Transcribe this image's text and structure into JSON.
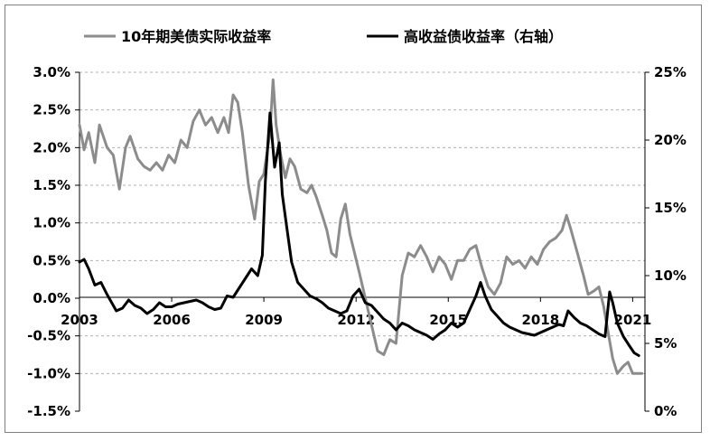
{
  "chart_data": {
    "type": "line",
    "title": "",
    "xlabel": "",
    "ylabel_left": "",
    "ylabel_right": "",
    "legend_placement": "top-center",
    "grid": "horizontal dashed",
    "x_ticks": [
      "2003",
      "2006",
      "2009",
      "2012",
      "2015",
      "2018",
      "2021"
    ],
    "x_range": [
      2003.0,
      2021.4
    ],
    "left_axis": {
      "ticks": [
        "3.0%",
        "2.5%",
        "2.0%",
        "1.5%",
        "1.0%",
        "0.5%",
        "0.0%",
        "-0.5%",
        "-1.0%",
        "-1.5%"
      ],
      "range": [
        -1.5,
        3.0
      ]
    },
    "right_axis": {
      "ticks": [
        "25%",
        "20%",
        "15%",
        "10%",
        "5%",
        "0%"
      ],
      "range": [
        0,
        25
      ]
    },
    "series": [
      {
        "name": "10年期美债实际收益率",
        "axis": "left",
        "color": "#8c8c8c",
        "points": [
          [
            2003.0,
            2.3
          ],
          [
            2003.15,
            1.97
          ],
          [
            2003.3,
            2.2
          ],
          [
            2003.5,
            1.8
          ],
          [
            2003.65,
            2.3
          ],
          [
            2003.9,
            2.0
          ],
          [
            2004.1,
            1.9
          ],
          [
            2004.3,
            1.45
          ],
          [
            2004.5,
            2.0
          ],
          [
            2004.65,
            2.15
          ],
          [
            2004.9,
            1.85
          ],
          [
            2005.1,
            1.75
          ],
          [
            2005.3,
            1.7
          ],
          [
            2005.5,
            1.8
          ],
          [
            2005.7,
            1.7
          ],
          [
            2005.9,
            1.9
          ],
          [
            2006.1,
            1.8
          ],
          [
            2006.3,
            2.1
          ],
          [
            2006.5,
            2.0
          ],
          [
            2006.7,
            2.35
          ],
          [
            2006.9,
            2.5
          ],
          [
            2007.1,
            2.3
          ],
          [
            2007.3,
            2.4
          ],
          [
            2007.5,
            2.2
          ],
          [
            2007.7,
            2.4
          ],
          [
            2007.85,
            2.2
          ],
          [
            2008.0,
            2.7
          ],
          [
            2008.15,
            2.6
          ],
          [
            2008.3,
            2.2
          ],
          [
            2008.5,
            1.5
          ],
          [
            2008.7,
            1.05
          ],
          [
            2008.85,
            1.55
          ],
          [
            2009.0,
            1.65
          ],
          [
            2009.2,
            2.2
          ],
          [
            2009.3,
            2.9
          ],
          [
            2009.4,
            2.3
          ],
          [
            2009.55,
            1.9
          ],
          [
            2009.7,
            1.6
          ],
          [
            2009.85,
            1.85
          ],
          [
            2010.0,
            1.75
          ],
          [
            2010.2,
            1.45
          ],
          [
            2010.4,
            1.4
          ],
          [
            2010.55,
            1.5
          ],
          [
            2010.7,
            1.35
          ],
          [
            2010.9,
            1.1
          ],
          [
            2011.05,
            0.9
          ],
          [
            2011.2,
            0.6
          ],
          [
            2011.35,
            0.55
          ],
          [
            2011.5,
            1.05
          ],
          [
            2011.65,
            1.25
          ],
          [
            2011.8,
            0.85
          ],
          [
            2011.95,
            0.6
          ],
          [
            2012.1,
            0.35
          ],
          [
            2012.3,
            0.0
          ],
          [
            2012.5,
            -0.35
          ],
          [
            2012.7,
            -0.7
          ],
          [
            2012.9,
            -0.75
          ],
          [
            2013.1,
            -0.55
          ],
          [
            2013.3,
            -0.6
          ],
          [
            2013.5,
            0.3
          ],
          [
            2013.7,
            0.6
          ],
          [
            2013.9,
            0.55
          ],
          [
            2014.1,
            0.7
          ],
          [
            2014.3,
            0.55
          ],
          [
            2014.5,
            0.35
          ],
          [
            2014.7,
            0.55
          ],
          [
            2014.9,
            0.45
          ],
          [
            2015.1,
            0.25
          ],
          [
            2015.3,
            0.5
          ],
          [
            2015.5,
            0.5
          ],
          [
            2015.7,
            0.65
          ],
          [
            2015.9,
            0.7
          ],
          [
            2016.1,
            0.4
          ],
          [
            2016.3,
            0.15
          ],
          [
            2016.5,
            0.05
          ],
          [
            2016.7,
            0.2
          ],
          [
            2016.9,
            0.55
          ],
          [
            2017.1,
            0.45
          ],
          [
            2017.3,
            0.5
          ],
          [
            2017.5,
            0.4
          ],
          [
            2017.7,
            0.55
          ],
          [
            2017.9,
            0.45
          ],
          [
            2018.1,
            0.65
          ],
          [
            2018.3,
            0.75
          ],
          [
            2018.5,
            0.8
          ],
          [
            2018.7,
            0.9
          ],
          [
            2018.85,
            1.1
          ],
          [
            2019.0,
            0.9
          ],
          [
            2019.2,
            0.6
          ],
          [
            2019.4,
            0.3
          ],
          [
            2019.55,
            0.05
          ],
          [
            2019.75,
            0.1
          ],
          [
            2019.9,
            0.15
          ],
          [
            2020.05,
            -0.1
          ],
          [
            2020.2,
            -0.45
          ],
          [
            2020.35,
            -0.8
          ],
          [
            2020.5,
            -1.0
          ],
          [
            2020.7,
            -0.9
          ],
          [
            2020.85,
            -0.85
          ],
          [
            2021.0,
            -1.0
          ],
          [
            2021.3,
            -1.0
          ]
        ]
      },
      {
        "name": "高收益债收益率（右轴）",
        "axis": "right",
        "color": "#000000",
        "points": [
          [
            2003.0,
            11.0
          ],
          [
            2003.15,
            11.2
          ],
          [
            2003.3,
            10.5
          ],
          [
            2003.5,
            9.3
          ],
          [
            2003.7,
            9.5
          ],
          [
            2003.9,
            8.6
          ],
          [
            2004.05,
            8.0
          ],
          [
            2004.2,
            7.4
          ],
          [
            2004.4,
            7.6
          ],
          [
            2004.6,
            8.2
          ],
          [
            2004.8,
            7.8
          ],
          [
            2005.0,
            7.6
          ],
          [
            2005.2,
            7.2
          ],
          [
            2005.4,
            7.5
          ],
          [
            2005.6,
            8.0
          ],
          [
            2005.8,
            7.7
          ],
          [
            2006.0,
            7.7
          ],
          [
            2006.2,
            7.9
          ],
          [
            2006.4,
            8.0
          ],
          [
            2006.6,
            8.1
          ],
          [
            2006.8,
            8.2
          ],
          [
            2007.0,
            8.0
          ],
          [
            2007.2,
            7.7
          ],
          [
            2007.4,
            7.5
          ],
          [
            2007.6,
            7.6
          ],
          [
            2007.8,
            8.5
          ],
          [
            2008.0,
            8.4
          ],
          [
            2008.2,
            9.1
          ],
          [
            2008.4,
            9.8
          ],
          [
            2008.6,
            10.5
          ],
          [
            2008.8,
            10.0
          ],
          [
            2008.95,
            11.5
          ],
          [
            2009.05,
            17.0
          ],
          [
            2009.2,
            22.0
          ],
          [
            2009.35,
            18.0
          ],
          [
            2009.5,
            19.8
          ],
          [
            2009.6,
            16.0
          ],
          [
            2009.75,
            13.5
          ],
          [
            2009.9,
            11.0
          ],
          [
            2010.1,
            9.5
          ],
          [
            2010.3,
            9.0
          ],
          [
            2010.5,
            8.5
          ],
          [
            2010.7,
            8.3
          ],
          [
            2010.9,
            8.0
          ],
          [
            2011.1,
            7.6
          ],
          [
            2011.3,
            7.4
          ],
          [
            2011.5,
            7.2
          ],
          [
            2011.7,
            7.4
          ],
          [
            2011.9,
            8.5
          ],
          [
            2012.1,
            9.0
          ],
          [
            2012.3,
            8.0
          ],
          [
            2012.5,
            7.8
          ],
          [
            2012.7,
            7.3
          ],
          [
            2012.9,
            6.8
          ],
          [
            2013.1,
            6.5
          ],
          [
            2013.3,
            6.0
          ],
          [
            2013.5,
            6.5
          ],
          [
            2013.7,
            6.3
          ],
          [
            2013.9,
            6.0
          ],
          [
            2014.1,
            5.8
          ],
          [
            2014.3,
            5.6
          ],
          [
            2014.5,
            5.3
          ],
          [
            2014.7,
            5.7
          ],
          [
            2014.9,
            6.0
          ],
          [
            2015.1,
            6.5
          ],
          [
            2015.3,
            6.2
          ],
          [
            2015.5,
            6.5
          ],
          [
            2015.7,
            7.5
          ],
          [
            2015.9,
            8.5
          ],
          [
            2016.05,
            9.5
          ],
          [
            2016.2,
            8.5
          ],
          [
            2016.4,
            7.5
          ],
          [
            2016.6,
            7.0
          ],
          [
            2016.8,
            6.5
          ],
          [
            2017.0,
            6.2
          ],
          [
            2017.2,
            6.0
          ],
          [
            2017.4,
            5.8
          ],
          [
            2017.6,
            5.7
          ],
          [
            2017.8,
            5.6
          ],
          [
            2018.0,
            5.8
          ],
          [
            2018.2,
            6.0
          ],
          [
            2018.4,
            6.2
          ],
          [
            2018.6,
            6.4
          ],
          [
            2018.75,
            6.3
          ],
          [
            2018.9,
            7.4
          ],
          [
            2019.1,
            6.9
          ],
          [
            2019.3,
            6.5
          ],
          [
            2019.5,
            6.3
          ],
          [
            2019.7,
            6.0
          ],
          [
            2019.9,
            5.7
          ],
          [
            2020.1,
            5.5
          ],
          [
            2020.25,
            8.8
          ],
          [
            2020.35,
            8.0
          ],
          [
            2020.5,
            6.5
          ],
          [
            2020.7,
            5.5
          ],
          [
            2020.9,
            4.8
          ],
          [
            2021.05,
            4.3
          ],
          [
            2021.2,
            4.1
          ]
        ]
      }
    ]
  }
}
